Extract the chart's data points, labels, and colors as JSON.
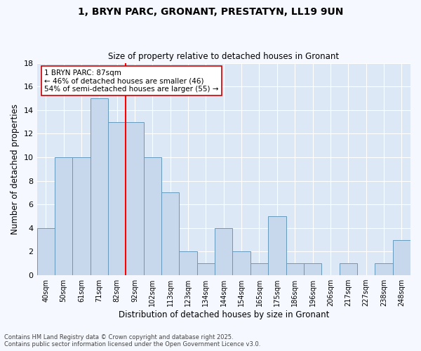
{
  "title": "1, BRYN PARC, GRONANT, PRESTATYN, LL19 9UN",
  "subtitle": "Size of property relative to detached houses in Gronant",
  "xlabel": "Distribution of detached houses by size in Gronant",
  "ylabel": "Number of detached properties",
  "bar_color": "#c8d8ec",
  "bar_edge_color": "#6699bb",
  "bg_color": "#dce8f5",
  "grid_color": "#ffffff",
  "fig_bg_color": "#f5f8ff",
  "categories": [
    "40sqm",
    "50sqm",
    "61sqm",
    "71sqm",
    "82sqm",
    "92sqm",
    "102sqm",
    "113sqm",
    "123sqm",
    "134sqm",
    "144sqm",
    "154sqm",
    "165sqm",
    "175sqm",
    "186sqm",
    "196sqm",
    "206sqm",
    "217sqm",
    "227sqm",
    "238sqm",
    "248sqm"
  ],
  "values": [
    4,
    10,
    10,
    15,
    13,
    13,
    10,
    7,
    2,
    1,
    4,
    2,
    1,
    5,
    1,
    1,
    0,
    1,
    0,
    1,
    3
  ],
  "ylim": [
    0,
    18
  ],
  "yticks": [
    0,
    2,
    4,
    6,
    8,
    10,
    12,
    14,
    16,
    18
  ],
  "red_line_x": 4.5,
  "annotation_title": "1 BRYN PARC: 87sqm",
  "annotation_line1": "← 46% of detached houses are smaller (46)",
  "annotation_line2": "54% of semi-detached houses are larger (55) →",
  "footer_line1": "Contains HM Land Registry data © Crown copyright and database right 2025.",
  "footer_line2": "Contains public sector information licensed under the Open Government Licence v3.0."
}
